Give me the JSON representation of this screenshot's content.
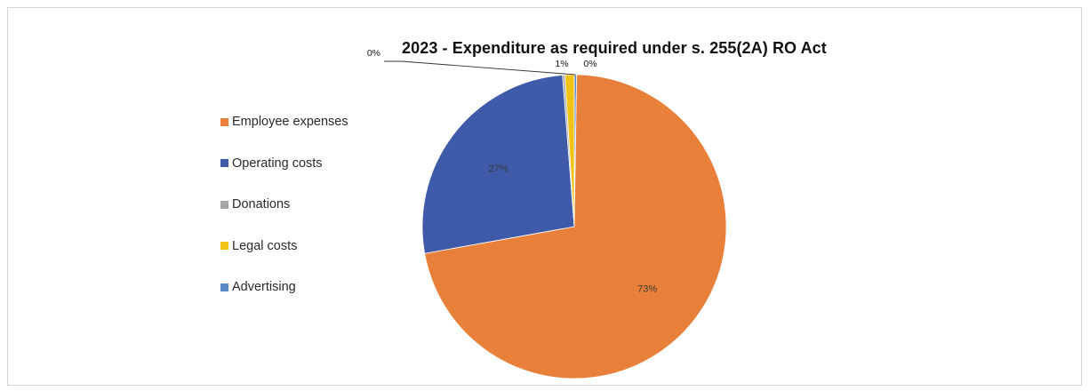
{
  "chart_data": {
    "type": "pie",
    "title": "2023 - Expenditure as required under s. 255(2A) RO Act",
    "slices": [
      {
        "label": "Employee expenses",
        "value": 73,
        "display": "73%",
        "color": "#e9803a"
      },
      {
        "label": "Operating costs",
        "value": 27,
        "display": "27%",
        "color": "#3f5aa8"
      },
      {
        "label": "Donations",
        "value": 0,
        "display": "0%",
        "color": "#a6a6a6"
      },
      {
        "label": "Legal costs",
        "value": 1,
        "display": "1%",
        "color": "#f2c314"
      },
      {
        "label": "Advertising",
        "value": 0,
        "display": "0%",
        "color": "#5b88c8"
      }
    ],
    "legend_position": "left",
    "grid": false
  }
}
